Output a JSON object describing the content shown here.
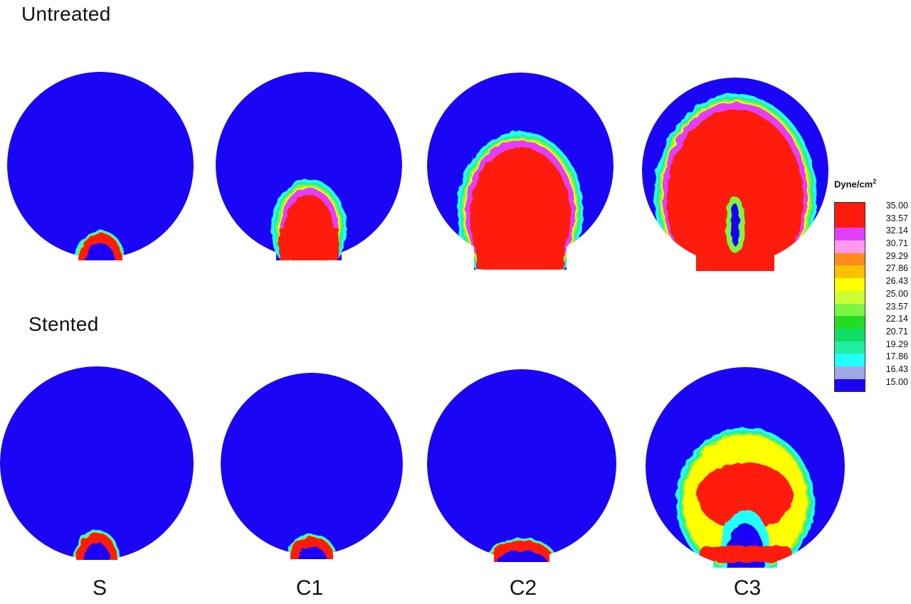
{
  "rows": {
    "untreated": "Untreated",
    "stented": "Stented"
  },
  "columns": [
    "S",
    "C1",
    "C2",
    "C3"
  ],
  "legend": {
    "title": "Dyne/cm",
    "title_superscript": "2",
    "values": [
      "35.00",
      "33.57",
      "32.14",
      "30.71",
      "29.29",
      "27.86",
      "26.43",
      "25.00",
      "23.57",
      "22.14",
      "20.71",
      "19.29",
      "17.86",
      "16.43",
      "15.00"
    ],
    "colors": [
      "#ff1a0d",
      "#ff1a0d",
      "#e040fb",
      "#ff99ee",
      "#ff8c1a",
      "#ffc000",
      "#ffff00",
      "#ccff33",
      "#7ef542",
      "#22dd22",
      "#11dd66",
      "#22eea0",
      "#22ffff",
      "#9fa8e8",
      "#1a06f5"
    ]
  },
  "colors": {
    "background_field": "#1a06f5",
    "max": "#ff1a0d",
    "contour_bands": [
      "#22ffff",
      "#22eea0",
      "#7ef542",
      "#ffff00",
      "#ff8c1a",
      "#e040fb"
    ]
  }
}
